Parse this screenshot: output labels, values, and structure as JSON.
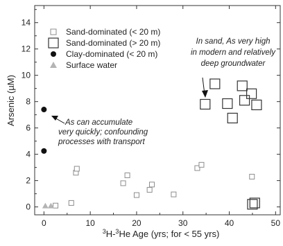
{
  "chart_data": {
    "type": "scatter",
    "xlabel_parts": {
      "pre": "3",
      "mid": "H-",
      "sup2": "3",
      "post": "He Age (yrs; for < 55 yrs)"
    },
    "ylabel": "Arsenic (µM)",
    "xlim": [
      -2,
      51
    ],
    "ylim": [
      -0.6,
      15.3
    ],
    "xticks": [
      0,
      10,
      20,
      30,
      40,
      50
    ],
    "yticks": [
      0,
      2,
      4,
      6,
      8,
      10,
      12,
      14
    ],
    "grid": false,
    "legend_position": "top-left",
    "series": [
      {
        "name": "Sand-dominated (< 20 m)",
        "marker": "small-open-square",
        "color": "#8c8c8c",
        "points": [
          [
            2.5,
            0.1
          ],
          [
            5.9,
            0.3
          ],
          [
            6.9,
            2.6
          ],
          [
            7.1,
            2.9
          ],
          [
            17.1,
            1.8
          ],
          [
            18.0,
            2.4
          ],
          [
            20.0,
            0.9
          ],
          [
            22.8,
            1.3
          ],
          [
            23.3,
            1.7
          ],
          [
            28.0,
            0.95
          ],
          [
            33.1,
            2.95
          ],
          [
            34.0,
            3.2
          ],
          [
            44.9,
            2.3
          ]
        ]
      },
      {
        "name": "Sand-dominated (> 20 m)",
        "marker": "large-open-square",
        "color": "#333333",
        "points": [
          [
            34.8,
            7.8
          ],
          [
            36.9,
            9.35
          ],
          [
            39.6,
            7.85
          ],
          [
            40.7,
            6.75
          ],
          [
            42.8,
            9.2
          ],
          [
            43.3,
            8.1
          ],
          [
            44.8,
            8.6
          ],
          [
            45.9,
            7.75
          ],
          [
            45.0,
            0.2
          ],
          [
            45.5,
            0.3
          ]
        ]
      },
      {
        "name": "Clay-dominated (< 20 m)",
        "marker": "filled-circle",
        "color": "#111111",
        "points": [
          [
            0.0,
            7.4
          ],
          [
            0.0,
            4.25
          ]
        ]
      },
      {
        "name": "Surface water",
        "marker": "filled-triangle",
        "color": "#b4b4b4",
        "points": [
          [
            0.3,
            0.05
          ],
          [
            1.5,
            0.05
          ]
        ]
      }
    ],
    "annotations": [
      {
        "id": "sand",
        "lines": [
          "In sand, As very high",
          "in modern and relatively",
          "deep groundwater"
        ],
        "arrow_to": [
          34.8,
          7.8
        ]
      },
      {
        "id": "clay",
        "lines": [
          "As can accumulate",
          "very quickly; confounding",
          "processes with transport"
        ],
        "arrow_to": [
          0.0,
          7.4
        ]
      }
    ]
  }
}
